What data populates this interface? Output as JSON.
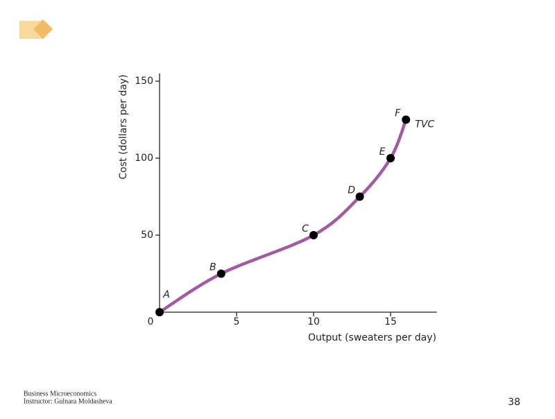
{
  "chart_data": {
    "type": "line",
    "xlabel": "Output (sweaters per day)",
    "ylabel": "Cost (dollars per day)",
    "origin_label": "0",
    "xlim": [
      0,
      18
    ],
    "ylim": [
      0,
      155
    ],
    "xticks": [
      5,
      10,
      15
    ],
    "yticks": [
      50,
      100,
      150
    ],
    "series": [
      {
        "name": "TVC",
        "color": "#a45aa0",
        "x": [
          0,
          4,
          10,
          13,
          15,
          16
        ],
        "values": [
          0,
          25,
          50,
          75,
          100,
          125
        ],
        "point_labels": [
          "A",
          "B",
          "C",
          "D",
          "E",
          "F"
        ]
      }
    ]
  },
  "footer": {
    "course": "Business Microeconomics",
    "instructor": "Instructor: Gulnara Moldasheva",
    "page": "38"
  }
}
